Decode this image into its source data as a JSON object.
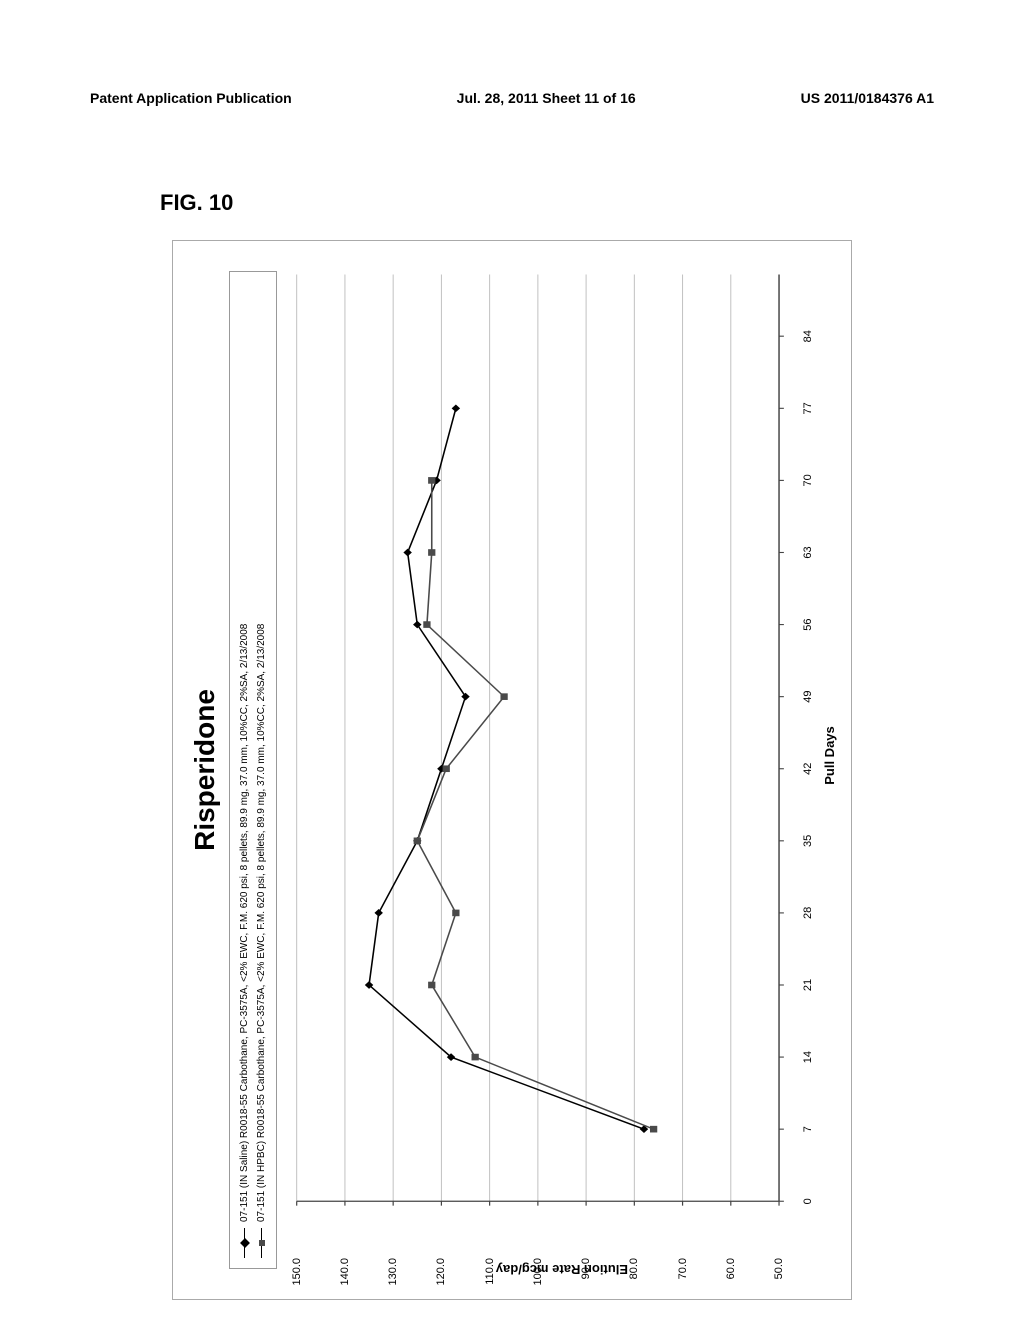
{
  "header": {
    "left": "Patent Application Publication",
    "center": "Jul. 28, 2011  Sheet 11 of 16",
    "right": "US 2011/0184376 A1"
  },
  "figure_label": "FIG. 10",
  "chart": {
    "type": "line",
    "title": "Risperidone",
    "title_fontsize": 28,
    "xlabel": "Pull Days",
    "ylabel": "Elution Rate mcg/day",
    "label_fontsize": 13,
    "tick_fontsize": 11,
    "background_color": "#ffffff",
    "border_color": "#aaaaaa",
    "grid_color": "#bfbfbf",
    "grid_width": 0.8,
    "axis_color": "#444444",
    "xlim": [
      0,
      90
    ],
    "ylim": [
      50,
      150
    ],
    "xticks": [
      0,
      7,
      14,
      21,
      28,
      35,
      42,
      49,
      56,
      63,
      70,
      77,
      84
    ],
    "yticks": [
      50.0,
      60.0,
      70.0,
      80.0,
      90.0,
      100.0,
      110.0,
      120.0,
      130.0,
      140.0,
      150.0
    ],
    "ytick_labels": [
      "50.0",
      "60.0",
      "70.0",
      "80.0",
      "90.0",
      "100.0",
      "110.0",
      "120.0",
      "130.0",
      "140.0",
      "150.0"
    ],
    "series": [
      {
        "name": "07-151 (IN Saline) R0018-55 Carbothane, PC-3575A, <2% EWC, F.M. 620 psi, 8 pellets, 89.9 mg, 37.0 mm, 10%CC, 2%SA, 2/13/2008",
        "marker": "diamond",
        "line_color": "#000000",
        "marker_color": "#000000",
        "line_width": 1.3,
        "marker_size": 7,
        "x": [
          7,
          14,
          21,
          28,
          35,
          42,
          49,
          56,
          63,
          70,
          77
        ],
        "y": [
          78,
          118,
          135,
          133,
          125,
          120,
          115,
          125,
          127,
          121,
          117
        ]
      },
      {
        "name": "07-151 (IN HPBC) R0018-55 Carbothane, PC-3575A, <2% EWC, F.M. 620 psi, 8 pellets, 89.9 mg, 37.0 mm, 10%CC, 2%SA, 2/13/2008",
        "marker": "square",
        "line_color": "#4a4a4a",
        "marker_color": "#4a4a4a",
        "line_width": 1.3,
        "marker_size": 6,
        "x": [
          7,
          14,
          21,
          28,
          35,
          42,
          49,
          56,
          63,
          70
        ],
        "y": [
          76,
          113,
          122,
          117,
          125,
          119,
          107,
          123,
          122,
          122
        ]
      }
    ]
  }
}
